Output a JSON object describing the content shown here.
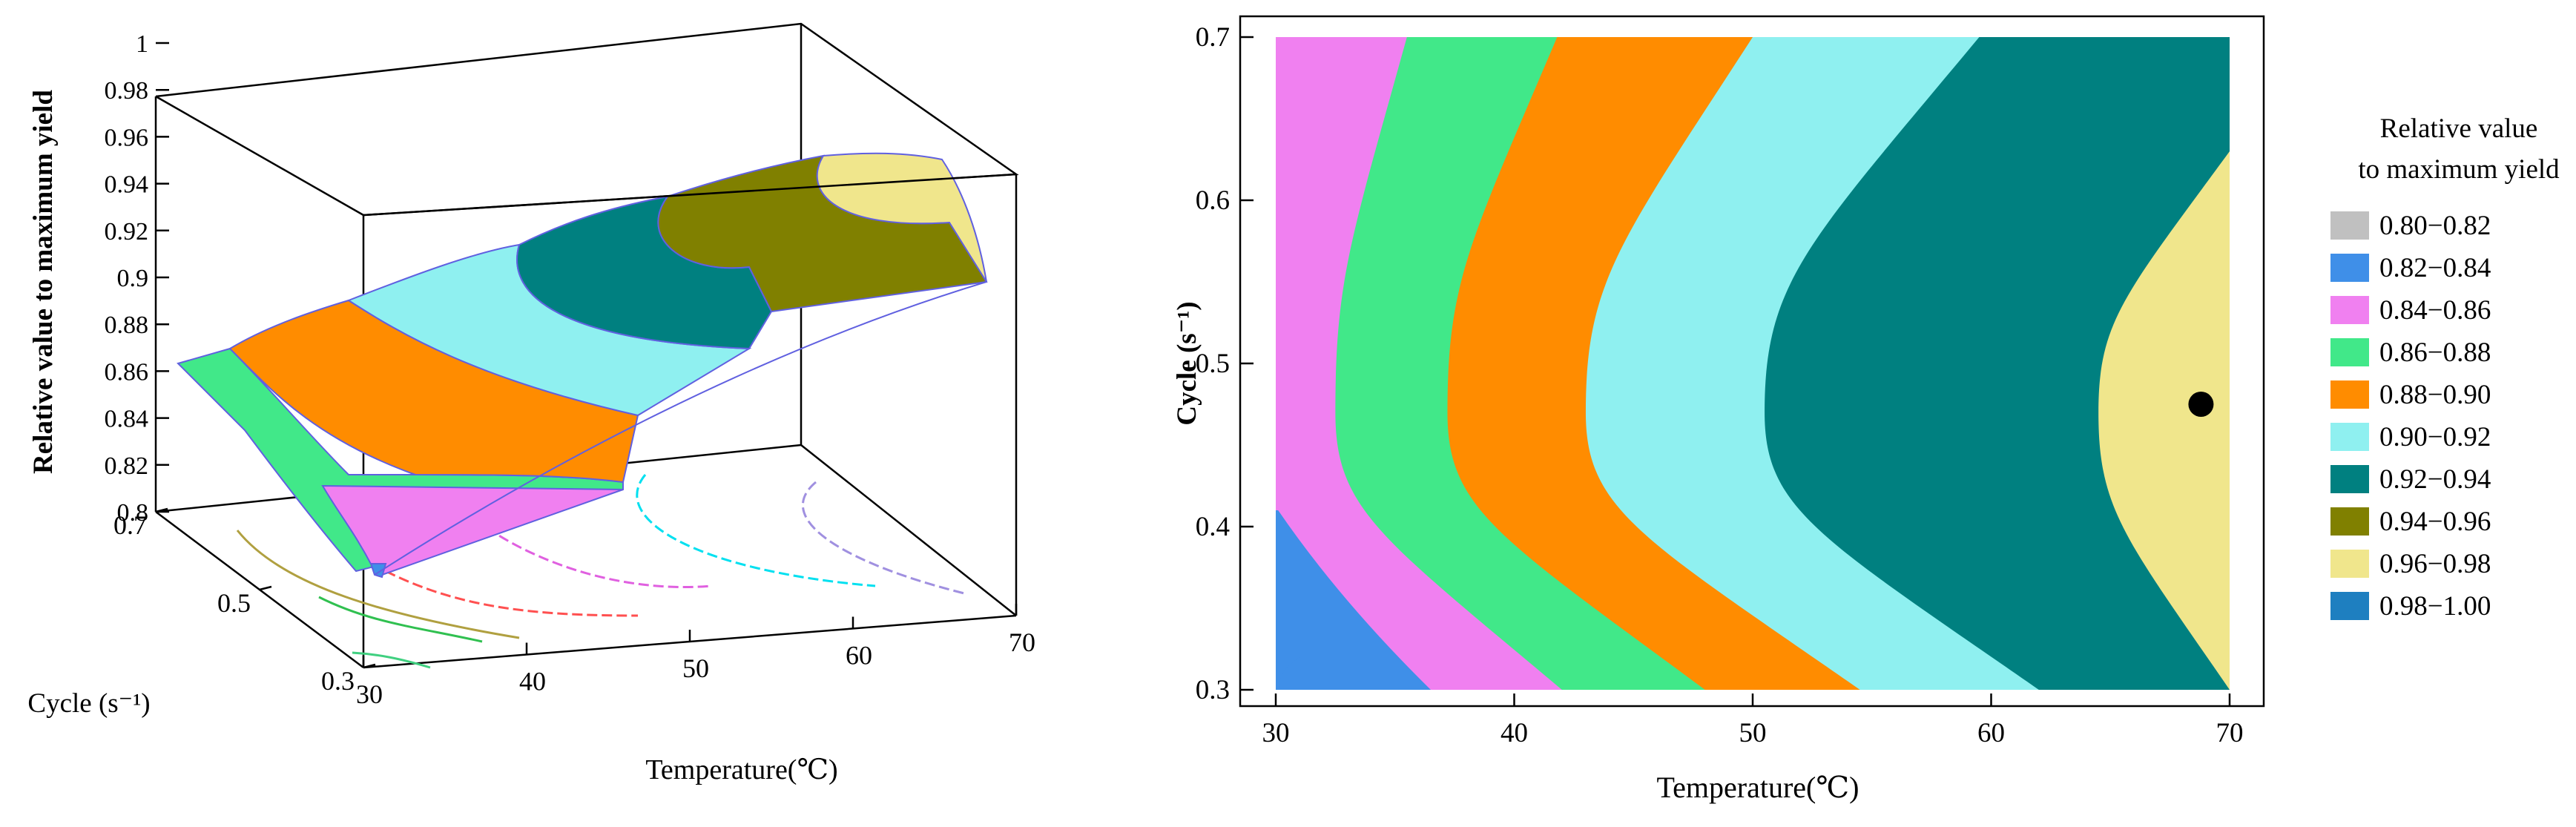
{
  "colors": {
    "0.80-0.82": "#c0c0c0",
    "0.82-0.84": "#3f8fe8",
    "0.84-0.86": "#f080f0",
    "0.86-0.88": "#41e889",
    "0.88-0.90": "#ff8c00",
    "0.90-0.92": "#8ff0f0",
    "0.92-0.94": "#008080",
    "0.94-0.96": "#808000",
    "0.96-0.98": "#f0e68c",
    "0.98-1.00": "#1e7fc0",
    "optimum_marker": "#000000"
  },
  "chart_data": [
    {
      "type": "surface3d",
      "zlabel": "Relative value to maximum yield",
      "xlabel": "Temperature(℃)",
      "ylabel": "Cycle (s⁻¹)",
      "x_ticks": [
        "30",
        "40",
        "50",
        "60",
        "70"
      ],
      "y_ticks": [
        "0.7",
        "0.5",
        "0.3"
      ],
      "z_ticks": [
        "1",
        "0.98",
        "0.96",
        "0.94",
        "0.92",
        "0.9",
        "0.88",
        "0.86",
        "0.84",
        "0.82",
        "0.8"
      ],
      "xlim": [
        30,
        70
      ],
      "ylim": [
        0.3,
        0.7
      ],
      "zlim": [
        0.8,
        1.0
      ],
      "bands": [
        "0.84-0.86",
        "0.86-0.88",
        "0.88-0.90",
        "0.90-0.92",
        "0.92-0.94",
        "0.94-0.96",
        "0.96-0.98"
      ]
    },
    {
      "type": "contour",
      "xlabel": "Temperature(℃)",
      "ylabel": "Cycle (s⁻¹)",
      "x_ticks": [
        "30",
        "40",
        "50",
        "60",
        "70"
      ],
      "y_ticks": [
        "0.7",
        "0.6",
        "0.5",
        "0.4",
        "0.3"
      ],
      "xlim": [
        30,
        70
      ],
      "ylim": [
        0.3,
        0.7
      ],
      "legend_title": [
        "Relative value",
        "to maximum yield"
      ],
      "legend": [
        "0.80−0.82",
        "0.82−0.84",
        "0.84−0.86",
        "0.86−0.88",
        "0.88−0.90",
        "0.90−0.92",
        "0.92−0.94",
        "0.94−0.96",
        "0.96−0.98",
        "0.98−1.00"
      ],
      "legend_keys": [
        "0.80-0.82",
        "0.82-0.84",
        "0.84-0.86",
        "0.86-0.88",
        "0.88-0.90",
        "0.90-0.92",
        "0.92-0.94",
        "0.94-0.96",
        "0.96-0.98",
        "0.98-1.00"
      ],
      "boundaries": [
        {
          "band": "0.82-0.84",
          "top": [
            31,
            0.32
          ],
          "bottom": [
            30.2,
            0.3
          ]
        },
        {
          "band": "0.84-0.86",
          "top": [
            30.1,
            0.41
          ],
          "bottom": [
            36.5,
            0.3
          ]
        },
        {
          "band": "0.86-0.88",
          "top": [
            35.5,
            0.7
          ],
          "mid": [
            32.5,
            0.47
          ],
          "bottom": [
            42,
            0.3
          ]
        },
        {
          "band": "0.88-0.90",
          "top": [
            41.8,
            0.7
          ],
          "mid": [
            37.2,
            0.47
          ],
          "bottom": [
            48,
            0.3
          ]
        },
        {
          "band": "0.90-0.92",
          "top": [
            50,
            0.7
          ],
          "mid": [
            43,
            0.47
          ],
          "bottom": [
            54.5,
            0.3
          ]
        },
        {
          "band": "0.92-0.94",
          "top": [
            59.5,
            0.7
          ],
          "mid": [
            50.5,
            0.47
          ],
          "bottom": [
            62,
            0.3
          ]
        },
        {
          "band": "0.94-0.96",
          "top": [
            70,
            0.63
          ],
          "mid": [
            64.5,
            0.47
          ],
          "bottom": [
            70,
            0.3
          ]
        }
      ],
      "fill_order": [
        "0.96-0.98",
        "0.94-0.96",
        "0.92-0.94",
        "0.90-0.92",
        "0.88-0.90",
        "0.86-0.88",
        "0.84-0.86",
        "0.82-0.84"
      ],
      "optimum": {
        "temperature": 68.8,
        "cycle": 0.475
      }
    }
  ]
}
